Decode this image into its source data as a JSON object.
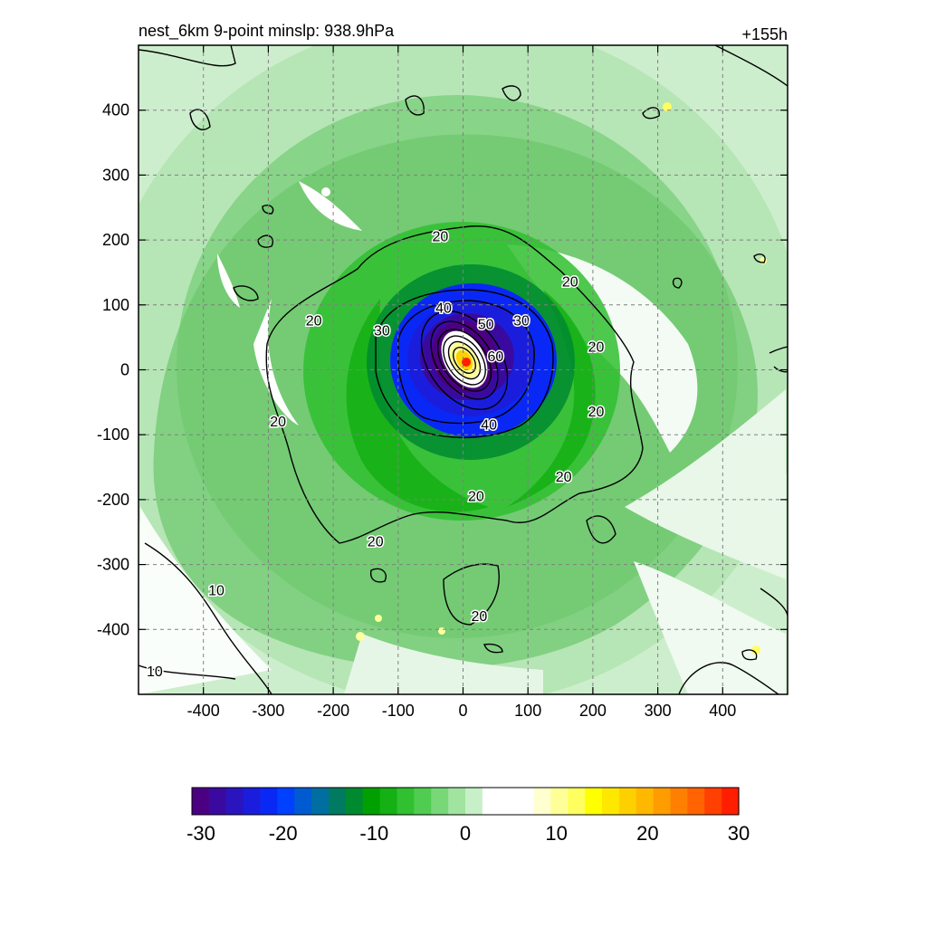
{
  "chart_data": {
    "type": "heatmap",
    "title": "nest_6km  9-point minslp: 938.9hPa",
    "time_label": "+155h",
    "xlim": [
      -500,
      500
    ],
    "ylim": [
      -500,
      500
    ],
    "x_ticks": [
      -400,
      -300,
      -200,
      -100,
      0,
      100,
      200,
      300,
      400
    ],
    "y_ticks": [
      400,
      300,
      200,
      100,
      0,
      -100,
      -200,
      -300,
      -400
    ],
    "grid": true,
    "contour_line_labels": [
      {
        "text": "20",
        "x": -35,
        "y": 205
      },
      {
        "text": "20",
        "x": 165,
        "y": 135
      },
      {
        "text": "20",
        "x": -230,
        "y": 75
      },
      {
        "text": "20",
        "x": 205,
        "y": 35
      },
      {
        "text": "20",
        "x": -285,
        "y": -80
      },
      {
        "text": "20",
        "x": 205,
        "y": -65
      },
      {
        "text": "20",
        "x": 155,
        "y": -165
      },
      {
        "text": "20",
        "x": 20,
        "y": -195
      },
      {
        "text": "20",
        "x": -135,
        "y": -265
      },
      {
        "text": "20",
        "x": 25,
        "y": -380
      },
      {
        "text": "10",
        "x": -380,
        "y": -340
      },
      {
        "text": "10",
        "x": -475,
        "y": -465
      },
      {
        "text": "30",
        "x": -125,
        "y": 60
      },
      {
        "text": "40",
        "x": -30,
        "y": 95
      },
      {
        "text": "50",
        "x": 35,
        "y": 70
      },
      {
        "text": "30",
        "x": 90,
        "y": 75
      },
      {
        "text": "60",
        "x": 50,
        "y": 20
      },
      {
        "text": "40",
        "x": 40,
        "y": -85
      }
    ],
    "colorbar": {
      "min": -30,
      "max": 30,
      "ticks": [
        "-30",
        "-20",
        "-10",
        "0",
        "10",
        "20",
        "30"
      ],
      "colors": [
        "#4b0082",
        "#3a0aa0",
        "#2a14be",
        "#1a1edc",
        "#0a28f5",
        "#0040ff",
        "#005ad0",
        "#006ea0",
        "#007a60",
        "#008a30",
        "#00a000",
        "#14b014",
        "#30c030",
        "#50cc50",
        "#78d878",
        "#a0e4a0",
        "#c8f0c8",
        "#ffffff",
        "#ffffff",
        "#ffffff",
        "#ffffd0",
        "#ffff98",
        "#ffff60",
        "#ffff00",
        "#ffe800",
        "#ffd000",
        "#ffb800",
        "#ff9c00",
        "#ff8000",
        "#ff6400",
        "#ff4000",
        "#ff1e00"
      ]
    }
  }
}
